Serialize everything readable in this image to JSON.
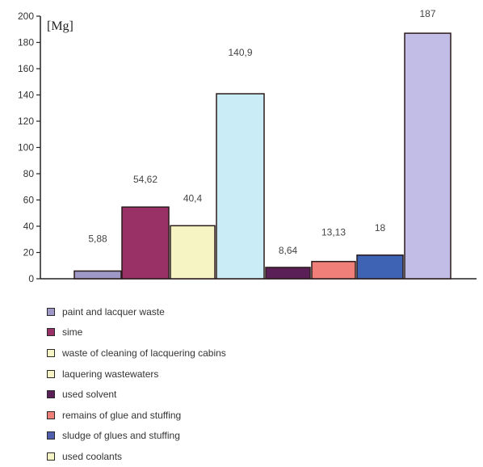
{
  "chart_data": {
    "type": "bar",
    "unit_label": "[Mg]",
    "ylim": [
      0,
      200
    ],
    "yticks": [
      0,
      20,
      40,
      60,
      80,
      100,
      120,
      140,
      160,
      180,
      200
    ],
    "grid": false,
    "legend_position": "bottom",
    "series": [
      {
        "name": "paint and lacquer waste",
        "value": 5.88,
        "label": "5,88",
        "color": "#9e98c6"
      },
      {
        "name": "sime",
        "value": 54.62,
        "label": "54,62",
        "color": "#9a3166"
      },
      {
        "name": "waste of cleaning of lacquering cabins",
        "value": 40.4,
        "label": "40,4",
        "color": "#f7f4c4"
      },
      {
        "name": "laquering wastewaters",
        "value": 140.9,
        "label": "140,9",
        "color": "#c9ecf6"
      },
      {
        "name": "used solvent",
        "value": 8.64,
        "label": "8,64",
        "color": "#5b1f57"
      },
      {
        "name": "remains of glue and stuffing",
        "value": 13.13,
        "label": "13,13",
        "color": "#f07f7a"
      },
      {
        "name": "sludge of glues and stuffing",
        "value": 18,
        "label": "18",
        "color": "#3e62b4"
      },
      {
        "name": "used coolants",
        "value": 187,
        "label": "187",
        "color": "#c1bde6"
      }
    ],
    "legend_swatch_colors": [
      "#9e98c6",
      "#9a3166",
      "#f7f4c4",
      "#f7f4c4",
      "#5b1f57",
      "#f07f7a",
      "#4f5fae",
      "#f7f4c4"
    ]
  }
}
